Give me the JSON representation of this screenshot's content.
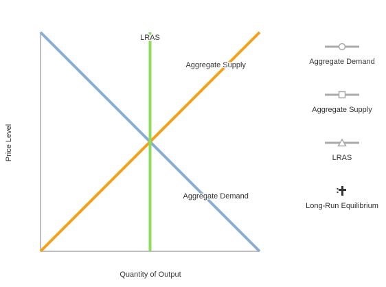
{
  "chart_data": {
    "type": "line",
    "xlabel": "Quantity of Output",
    "ylabel": "Price Level",
    "xlim": [
      0,
      100
    ],
    "ylim": [
      0,
      100
    ],
    "grid": false,
    "series": [
      {
        "name": "Aggregate Demand",
        "color": "#8aaed2",
        "x": [
          0,
          100
        ],
        "y": [
          100,
          0
        ]
      },
      {
        "name": "Aggregate Supply",
        "color": "#f5a01a",
        "x": [
          0,
          100
        ],
        "y": [
          0,
          100
        ]
      },
      {
        "name": "LRAS",
        "color": "#8ddc5c",
        "x": [
          50,
          50
        ],
        "y": [
          0,
          100
        ]
      }
    ],
    "annotations": [
      {
        "text": "LRAS",
        "x": 50,
        "y": 97.5
      },
      {
        "text": "Aggregate Supply",
        "x": 80,
        "y": 85
      },
      {
        "text": "Aggregate Demand",
        "x": 80,
        "y": 25
      }
    ]
  },
  "tools": [
    {
      "label": "Aggregate Demand",
      "icon": "line-circle-icon"
    },
    {
      "label": "Aggregate Supply",
      "icon": "line-square-icon"
    },
    {
      "label": "LRAS",
      "icon": "line-triangle-icon"
    },
    {
      "label": "Long-Run Equilibrium",
      "icon": "equilibrium-cross-icon"
    }
  ]
}
